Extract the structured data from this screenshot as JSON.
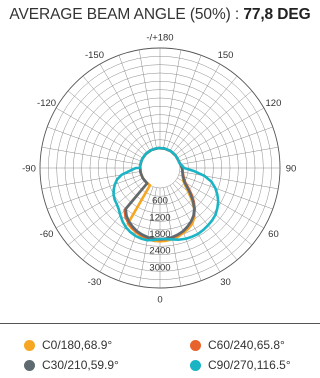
{
  "header": {
    "title_prefix": "AVERAGE BEAM ANGLE (50%) : ",
    "title_value": "77,8 DEG"
  },
  "chart_data": {
    "type": "polar-photometric",
    "title": "AVERAGE BEAM ANGLE (50%) : 77,8 DEG",
    "angle_labels": [
      {
        "angle": 0,
        "label": "0"
      },
      {
        "angle": 30,
        "label": "30"
      },
      {
        "angle": 60,
        "label": "60"
      },
      {
        "angle": 90,
        "label": "90"
      },
      {
        "angle": 120,
        "label": "120"
      },
      {
        "angle": 150,
        "label": "150"
      },
      {
        "angle": 180,
        "label": "-/+180"
      },
      {
        "angle": -150,
        "label": "-150"
      },
      {
        "angle": -120,
        "label": "-120"
      },
      {
        "angle": -90,
        "label": "-90"
      },
      {
        "angle": -60,
        "label": "-60"
      },
      {
        "angle": -30,
        "label": "-30"
      }
    ],
    "radial_labels": [
      "600",
      "1200",
      "1800",
      "2400",
      "3000"
    ],
    "radial_ticks": [
      600,
      1200,
      1800,
      2400,
      3000
    ],
    "r_max": 3600,
    "grid_circle_step": 300,
    "spoke_step_deg": 10,
    "series": [
      {
        "name": "C0/180,68.9°",
        "color": "#f5a623",
        "points": [
          [
            -30,
            1600
          ],
          [
            -25,
            1680
          ],
          [
            -20,
            1760
          ],
          [
            -15,
            1830
          ],
          [
            -10,
            1880
          ],
          [
            -5,
            1910
          ],
          [
            0,
            1920
          ],
          [
            5,
            1910
          ],
          [
            10,
            1880
          ],
          [
            15,
            1830
          ],
          [
            20,
            1760
          ],
          [
            25,
            1690
          ],
          [
            30,
            1600
          ],
          [
            35,
            1440
          ],
          [
            40,
            1200
          ],
          [
            45,
            900
          ],
          [
            50,
            610
          ],
          [
            55,
            400
          ],
          [
            60,
            260
          ],
          [
            70,
            150
          ],
          [
            80,
            100
          ],
          [
            90,
            80
          ]
        ]
      },
      {
        "name": "C60/240,65.8°",
        "color": "#e8632c",
        "points": [
          [
            -40,
            1260
          ],
          [
            -35,
            1440
          ],
          [
            -30,
            1560
          ],
          [
            -25,
            1650
          ],
          [
            -20,
            1730
          ],
          [
            -15,
            1790
          ],
          [
            -10,
            1840
          ],
          [
            -5,
            1860
          ],
          [
            0,
            1870
          ],
          [
            5,
            1860
          ],
          [
            10,
            1830
          ],
          [
            15,
            1780
          ],
          [
            20,
            1710
          ],
          [
            25,
            1620
          ],
          [
            30,
            1520
          ],
          [
            35,
            1390
          ],
          [
            40,
            1230
          ],
          [
            45,
            1000
          ],
          [
            50,
            760
          ],
          [
            55,
            520
          ],
          [
            60,
            330
          ],
          [
            70,
            180
          ],
          [
            80,
            110
          ],
          [
            90,
            80
          ]
        ]
      },
      {
        "name": "C30/210,59.9°",
        "color": "#5f6a70",
        "points": [
          [
            -40,
            1200
          ],
          [
            -35,
            1380
          ],
          [
            -30,
            1510
          ],
          [
            -25,
            1610
          ],
          [
            -20,
            1700
          ],
          [
            -15,
            1760
          ],
          [
            -10,
            1810
          ],
          [
            -5,
            1830
          ],
          [
            0,
            1840
          ],
          [
            5,
            1830
          ],
          [
            10,
            1810
          ],
          [
            15,
            1760
          ],
          [
            20,
            1700
          ],
          [
            25,
            1610
          ],
          [
            30,
            1510
          ],
          [
            35,
            1380
          ],
          [
            40,
            1200
          ],
          [
            45,
            960
          ],
          [
            50,
            700
          ],
          [
            55,
            470
          ],
          [
            60,
            300
          ],
          [
            70,
            160
          ],
          [
            80,
            100
          ],
          [
            90,
            80
          ]
        ]
      },
      {
        "name": "C90/270,116.5°",
        "color": "#1ab4c4",
        "points": [
          [
            -90,
            150
          ],
          [
            -85,
            350
          ],
          [
            -80,
            680
          ],
          [
            -75,
            880
          ],
          [
            -70,
            1010
          ],
          [
            -65,
            1120
          ],
          [
            -60,
            1210
          ],
          [
            -55,
            1270
          ],
          [
            -50,
            1310
          ],
          [
            -45,
            1380
          ],
          [
            -40,
            1500
          ],
          [
            -35,
            1630
          ],
          [
            -30,
            1740
          ],
          [
            -25,
            1820
          ],
          [
            -20,
            1880
          ],
          [
            -15,
            1910
          ],
          [
            -10,
            1920
          ],
          [
            -5,
            1880
          ],
          [
            0,
            1840
          ],
          [
            5,
            1850
          ],
          [
            10,
            1890
          ],
          [
            15,
            1950
          ],
          [
            20,
            1990
          ],
          [
            25,
            2010
          ],
          [
            30,
            2020
          ],
          [
            35,
            2000
          ],
          [
            40,
            1970
          ],
          [
            45,
            1940
          ],
          [
            50,
            1890
          ],
          [
            55,
            1800
          ],
          [
            60,
            1700
          ],
          [
            65,
            1560
          ],
          [
            70,
            1400
          ],
          [
            75,
            1200
          ],
          [
            80,
            900
          ],
          [
            85,
            500
          ],
          [
            90,
            150
          ]
        ]
      }
    ],
    "legend_placement": "bottom"
  }
}
